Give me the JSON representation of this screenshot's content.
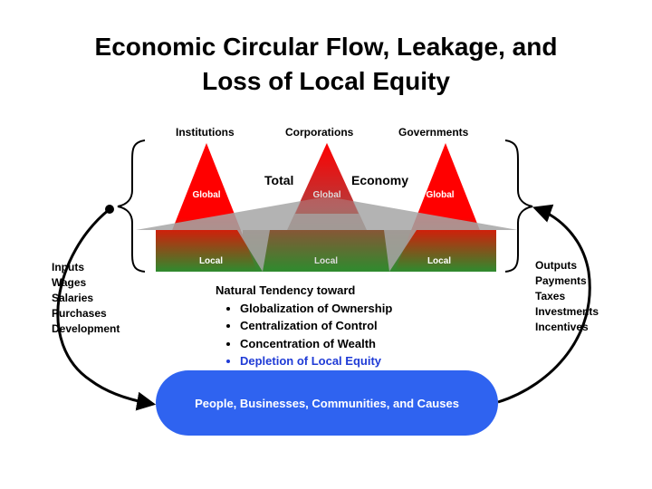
{
  "title": {
    "line1": "Economic Circular Flow, Leakage, and",
    "line2": "Loss of Local Equity"
  },
  "top_labels": [
    "Institutions",
    "Corporations",
    "Governments"
  ],
  "total_economy": {
    "word1": "Total",
    "word2": "Economy"
  },
  "pyramid_labels": {
    "global": "Global",
    "local": "Local"
  },
  "inputs": [
    "Inputs",
    "Wages",
    "Salaries",
    "Purchases",
    "Development"
  ],
  "outputs": [
    "Outputs",
    "Payments",
    "Taxes",
    "Investments",
    "Incentives"
  ],
  "tendency": {
    "heading": "Natural Tendency toward",
    "items": [
      "Globalization of Ownership",
      "Centralization of Control",
      "Concentration of Wealth",
      "Depletion of Local Equity"
    ]
  },
  "pill_label": "People, Businesses, Communities, and Causes",
  "colors": {
    "global_red": "#ff0000",
    "local_green": "#2e8b2e",
    "gray_band": "#a6a6a6",
    "pill_blue": "#2f63f0",
    "highlight_blue": "#1f3bd6"
  }
}
